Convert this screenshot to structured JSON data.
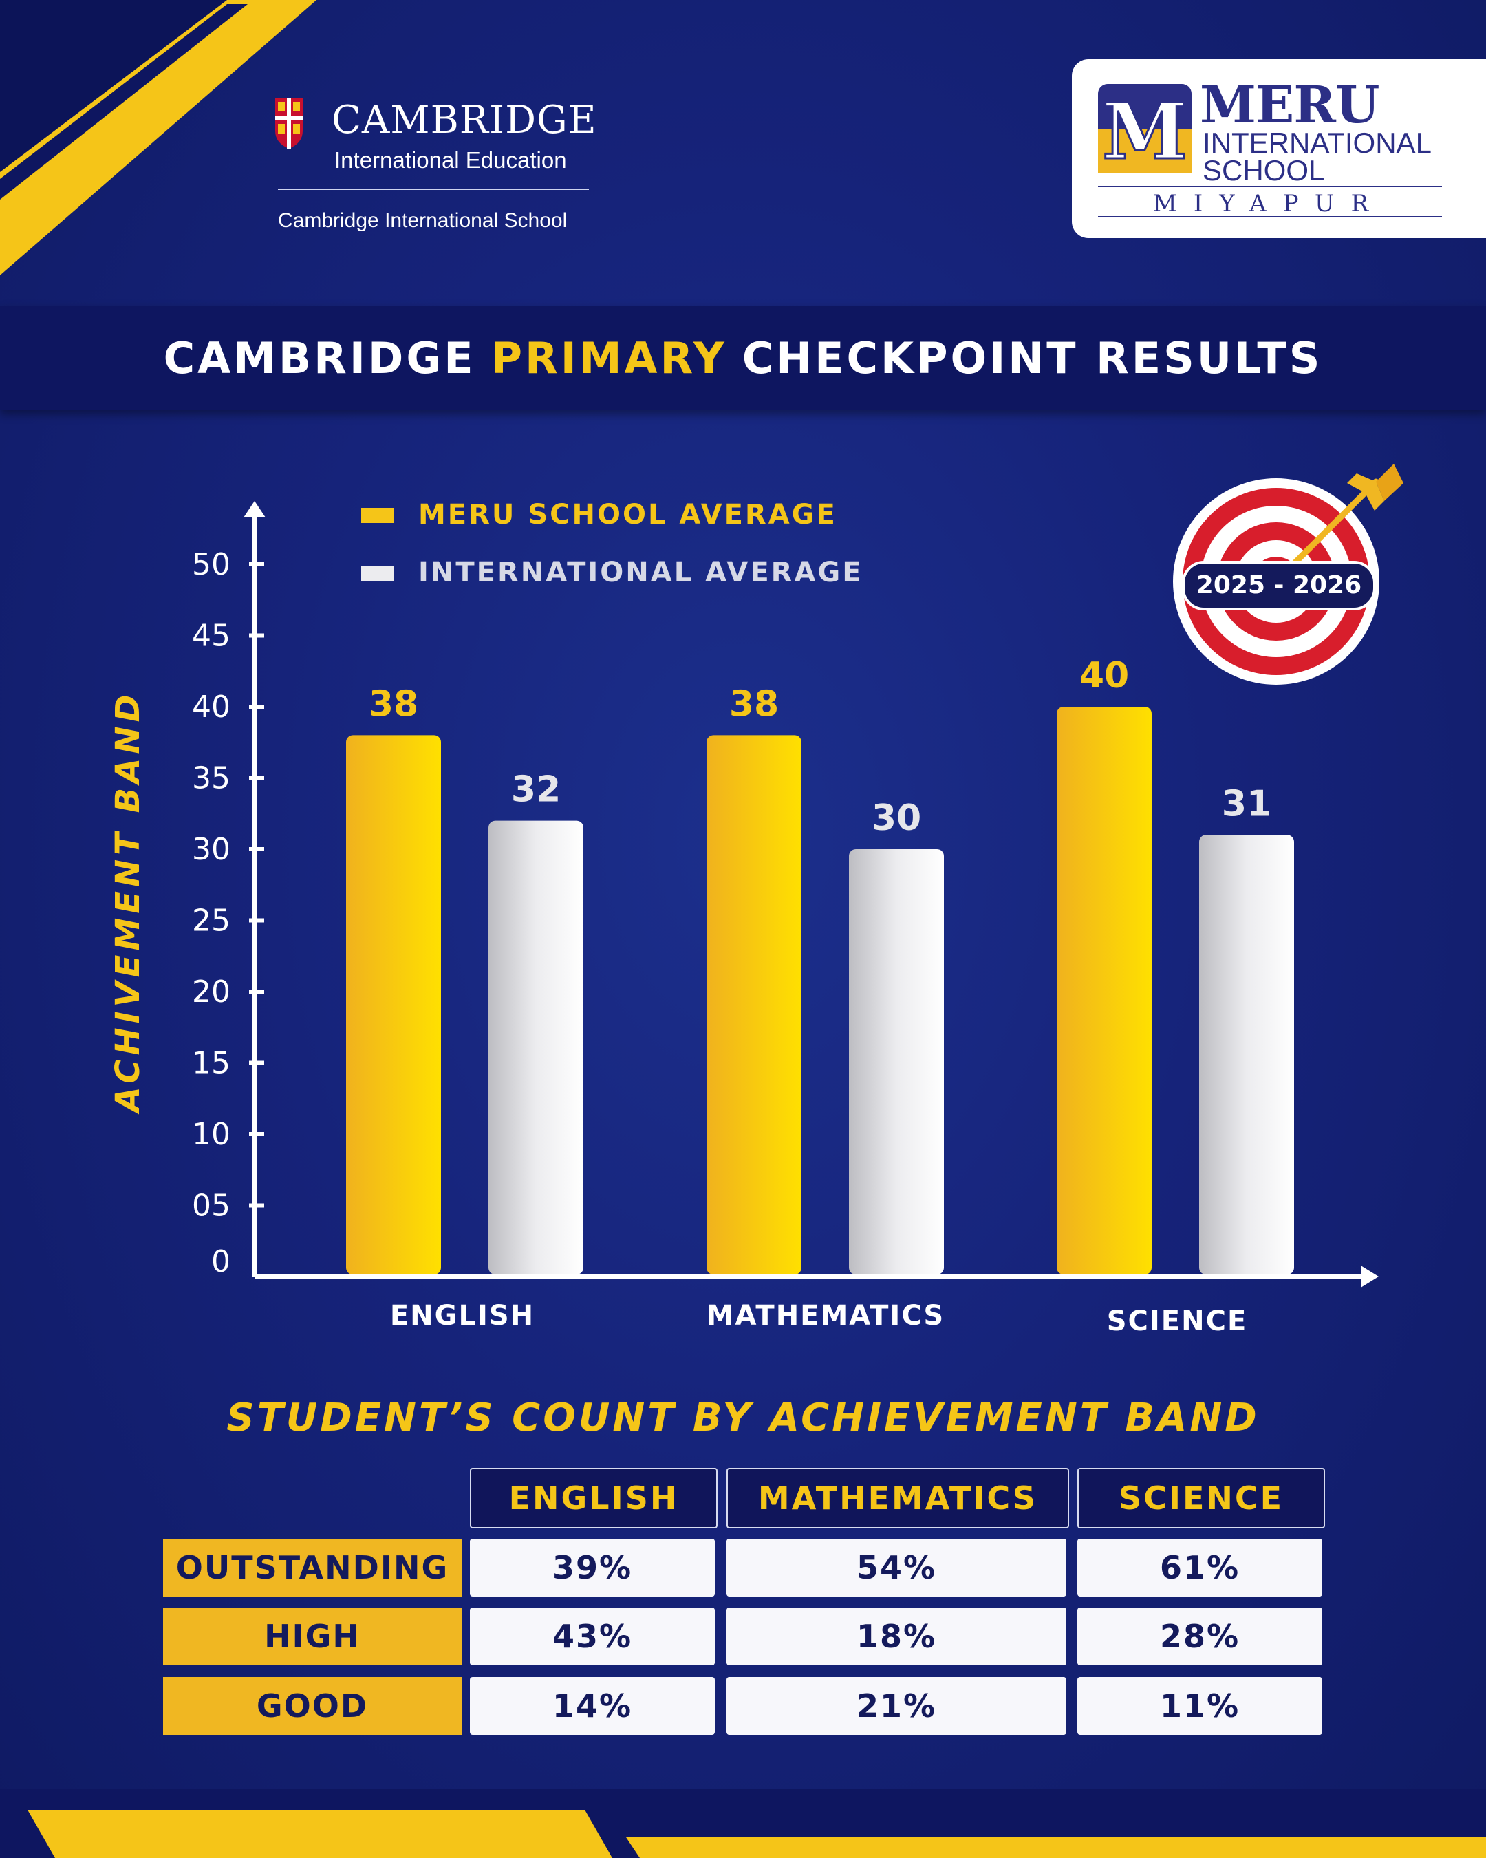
{
  "colors": {
    "background": "#16237a",
    "accent_yellow": "#f5c518",
    "navy": "#10155a",
    "white": "#ffffff"
  },
  "header": {
    "cambridge": {
      "wordmark": "CAMBRIDGE",
      "subtitle": "International Education",
      "school_line": "Cambridge International School"
    },
    "meru": {
      "name": "MERU",
      "line2": "INTERNATIONAL",
      "line3": "SCHOOL",
      "city": "MIYAPUR"
    }
  },
  "title": {
    "part1": "CAMBRIDGE",
    "part2": "PRIMARY",
    "part3": "CHECKPOINT RESULTS"
  },
  "badge": {
    "year": "2025 - 2026",
    "icon": "target-arrow-icon"
  },
  "chart_data": {
    "type": "bar",
    "ylabel": "ACHIVEMENT BAND",
    "ylim": [
      0,
      50
    ],
    "yticks": [
      "0",
      "05",
      "10",
      "15",
      "20",
      "25",
      "30",
      "35",
      "40",
      "45",
      "50"
    ],
    "categories": [
      "ENGLISH",
      "MATHEMATICS",
      "SCIENCE"
    ],
    "series": [
      {
        "name": "MERU SCHOOL AVERAGE",
        "color": "#f5c518",
        "values": [
          38,
          38,
          40
        ]
      },
      {
        "name": "INTERNATIONAL AVERAGE",
        "color": "#e6e6ea",
        "values": [
          32,
          30,
          31
        ]
      }
    ],
    "legend": "top-left"
  },
  "table": {
    "title": "STUDENT’S COUNT BY ACHIEVEMENT BAND",
    "columns": [
      "ENGLISH",
      "MATHEMATICS",
      "SCIENCE"
    ],
    "rows": [
      {
        "label": "OUTSTANDING",
        "values": [
          "39%",
          "54%",
          "61%"
        ]
      },
      {
        "label": "HIGH",
        "values": [
          "43%",
          "18%",
          "28%"
        ]
      },
      {
        "label": "GOOD",
        "values": [
          "14%",
          "21%",
          "11%"
        ]
      }
    ]
  }
}
